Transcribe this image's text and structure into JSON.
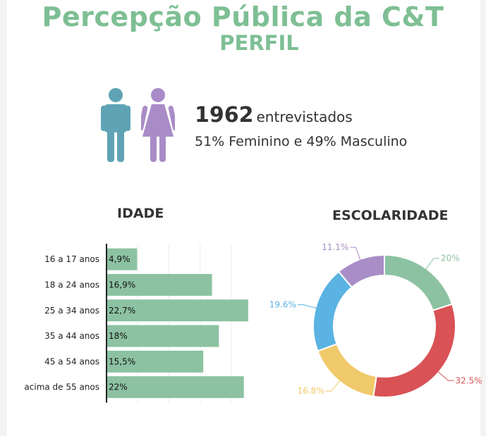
{
  "header": {
    "title": "Percepção Pública da C&T",
    "subtitle": "PERFIL"
  },
  "profile": {
    "respondents": "1962",
    "respondents_label": "entrevistados",
    "gender_split": "51% Feminino e 49% Masculino",
    "icons": [
      "man-icon",
      "woman-icon"
    ],
    "colors": {
      "man": "#5fa3b5",
      "woman": "#a98cc7"
    }
  },
  "chart_data": [
    {
      "type": "bar",
      "orientation": "horizontal",
      "title": "IDADE",
      "categories": [
        "16 a 17 anos",
        "18 a 24 anos",
        "25 a 34 anos",
        "35 a 44 anos",
        "45 a 54 anos",
        "acima de 55 anos"
      ],
      "values": [
        4.9,
        16.9,
        22.7,
        18,
        15.5,
        22
      ],
      "data_labels": [
        "4,9%",
        "16,9%",
        "22,7%",
        "18%",
        "15,5%",
        "22%"
      ],
      "xlim": [
        0,
        23
      ],
      "grid": true,
      "color": "#8cc2a2"
    },
    {
      "type": "pie",
      "donut": true,
      "title": "ESCOLARIDADE",
      "values": [
        20,
        32.5,
        16.8,
        19.6,
        11.1
      ],
      "data_labels": [
        "20%",
        "32.5%",
        "16.8%",
        "19.6%",
        "11.1%"
      ],
      "colors": [
        "#8cc2a2",
        "#d95256",
        "#f0c96a",
        "#5ab3e2",
        "#a88dc7"
      ]
    }
  ]
}
